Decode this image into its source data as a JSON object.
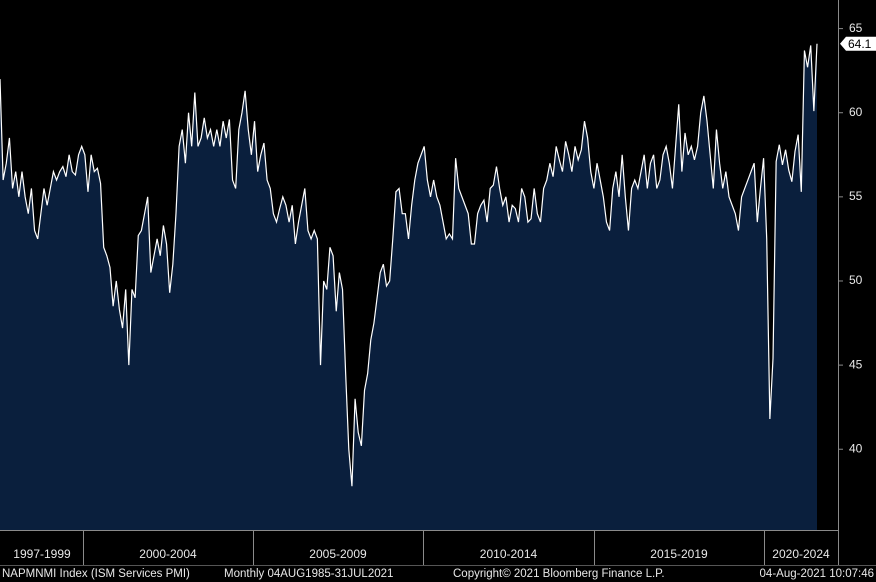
{
  "chart_data": {
    "type": "area",
    "x_labels": [
      "1997-1999",
      "2000-2004",
      "2005-2009",
      "2010-2014",
      "2015-2019",
      "2020-2024"
    ],
    "series": [
      {
        "name": "NAPMNMI Index (ISM Services PMI)",
        "color": "#ffffff",
        "fill": "#0a1f3d",
        "values": [
          62,
          56,
          57,
          58.5,
          55.5,
          56.5,
          55,
          56.5,
          55,
          54,
          55.5,
          53,
          52.5,
          54,
          55.5,
          54.5,
          55.5,
          56.5,
          56,
          56.5,
          56.8,
          56.2,
          57.5,
          56.5,
          56.3,
          57.5,
          58,
          57.5,
          55.3,
          57.5,
          56.5,
          56.7,
          55.8,
          52,
          51.5,
          50.8,
          48.5,
          50,
          48.3,
          47.2,
          49.5,
          45,
          49.5,
          49,
          52.7,
          53,
          54,
          55,
          50.5,
          51.5,
          52.5,
          51.5,
          53.3,
          52.2,
          49.3,
          51,
          54,
          58,
          59,
          57,
          60,
          58,
          61.2,
          58,
          58.5,
          59.7,
          58.5,
          59,
          58,
          59,
          58,
          59.5,
          58.5,
          59.6,
          56,
          55.5,
          59,
          60,
          61.3,
          59,
          57.5,
          59.5,
          56.5,
          57.5,
          58.2,
          56,
          55.5,
          54,
          53.5,
          54.3,
          55,
          54.5,
          53.5,
          54.5,
          52.2,
          53.5,
          54.5,
          55.5,
          53,
          52.5,
          53,
          52.5,
          45,
          50,
          49.5,
          52,
          51.5,
          48.2,
          50.5,
          49.5,
          44.5,
          40,
          37.8,
          43,
          41,
          40.2,
          43.5,
          44.5,
          46.5,
          47.5,
          49,
          50.5,
          51,
          49.7,
          50,
          52.5,
          55.3,
          55.5,
          54,
          54,
          52.5,
          54.5,
          56,
          57,
          57.5,
          58,
          56,
          55,
          56,
          55,
          54.5,
          53.5,
          52.5,
          52.8,
          52.5,
          57.3,
          55.5,
          55,
          54.5,
          54,
          52.2,
          52.2,
          54,
          54.5,
          54.8,
          53.5,
          55.5,
          55.7,
          56.8,
          55.5,
          54.5,
          55,
          53.5,
          54.5,
          54.3,
          53.5,
          55.5,
          55,
          53.5,
          53.7,
          55.5,
          54,
          53.5,
          55.5,
          56,
          57,
          56.2,
          58,
          57.2,
          56.5,
          58.3,
          57.5,
          56.5,
          58,
          57.2,
          57.8,
          59.5,
          58.5,
          56.5,
          55.5,
          57,
          56,
          55,
          53.5,
          53,
          55.5,
          56.5,
          55,
          57.5,
          55,
          53,
          55.5,
          56,
          55.5,
          56.5,
          57.5,
          55.5,
          57,
          57.5,
          55.5,
          56,
          57.5,
          58,
          57,
          55.5,
          58,
          60.5,
          56.5,
          58.8,
          57.5,
          58,
          57.2,
          58,
          60,
          61,
          59.5,
          57.5,
          55.5,
          59,
          57,
          55.5,
          56.5,
          55,
          54.5,
          54,
          53,
          55,
          55.5,
          56,
          56.5,
          57,
          53.5,
          55.5,
          57.3,
          52.5,
          41.8,
          45.4,
          57.1,
          58.1,
          56.9,
          57.8,
          56.6,
          55.9,
          57.7,
          58.7,
          55.3,
          63.7,
          62.7,
          64.0,
          60.1,
          64.1
        ]
      }
    ],
    "ylim": [
      35.2,
      66.7
    ],
    "yticks": [
      40,
      45,
      50,
      55,
      60,
      65
    ],
    "footer": {
      "ticker": "NAPMNMI Index (ISM Services PMI)",
      "frequency": "Monthly 04AUG1985-31JUL2021",
      "copyright": "Copyright© 2021 Bloomberg Finance L.P.",
      "timestamp": "04-Aug-2021 10:07:46"
    }
  }
}
